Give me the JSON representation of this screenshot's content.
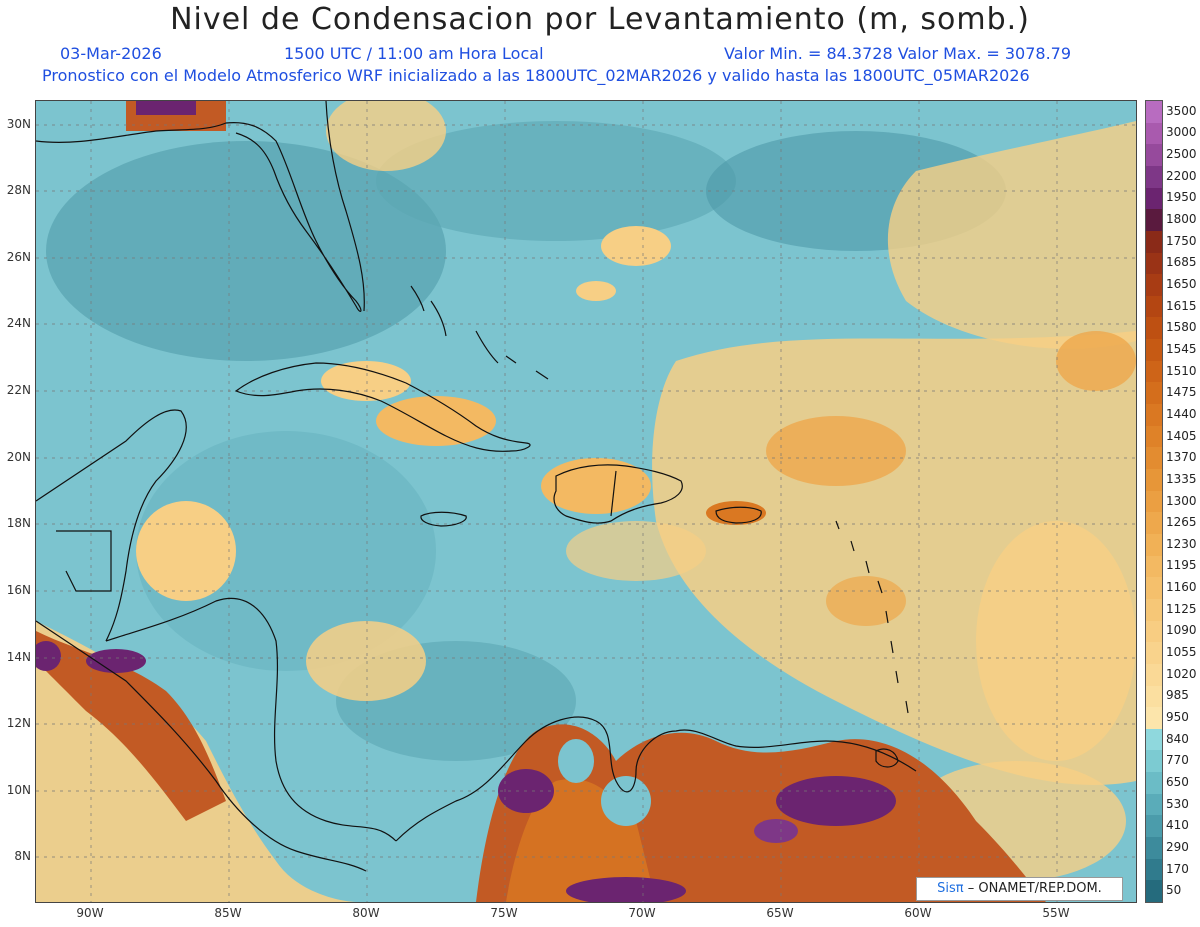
{
  "header": {
    "title": "Nivel de Condensacion por Levantamiento (m, somb.)",
    "date": "03-Mar-2026",
    "time": "1500 UTC / 11:00 am Hora Local",
    "minmax": "Valor Min. = 84.3728   Valor Max. = 3078.79",
    "model_info": "Pronostico con el Modelo Atmosferico WRF inicializado a las 1800UTC_02MAR2026 y valido hasta las  1800UTC_05MAR2026"
  },
  "axes": {
    "lat_labels": [
      "30N",
      "28N",
      "26N",
      "24N",
      "22N",
      "20N",
      "18N",
      "16N",
      "14N",
      "12N",
      "10N",
      "8N"
    ],
    "lon_labels": [
      "90W",
      "85W",
      "80W",
      "75W",
      "70W",
      "65W",
      "60W",
      "55W"
    ]
  },
  "colorbar": {
    "levels": [
      "3500",
      "3000",
      "2500",
      "2200",
      "1950",
      "1800",
      "1750",
      "1685",
      "1650",
      "1615",
      "1580",
      "1545",
      "1510",
      "1475",
      "1440",
      "1405",
      "1370",
      "1335",
      "1300",
      "1265",
      "1230",
      "1195",
      "1160",
      "1125",
      "1090",
      "1055",
      "1020",
      "985",
      "950",
      "840",
      "770",
      "650",
      "530",
      "410",
      "290",
      "170",
      "50"
    ],
    "colors": [
      "#b86cc0",
      "#a95aae",
      "#964a9c",
      "#7e3787",
      "#6b2470",
      "#5a1a3e",
      "#8a2a18",
      "#9a3316",
      "#a83c14",
      "#b44612",
      "#be5012",
      "#c65a14",
      "#ce6418",
      "#d46e1c",
      "#da7822",
      "#df8228",
      "#e38c30",
      "#e79638",
      "#eb9f42",
      "#eea84c",
      "#f1b156",
      "#f3b962",
      "#f5c06c",
      "#f6c777",
      "#f8cd82",
      "#f9d38c",
      "#fad996",
      "#fbdfa0",
      "#fce5ab",
      "#8fd8dd",
      "#7ccbd2",
      "#6bbcc6",
      "#5aacb9",
      "#4b9cab",
      "#3d8b9c",
      "#307b8d",
      "#256b7d"
    ]
  },
  "credit": {
    "brand": "Sisπ",
    "org": "– ONAMET/REP.DOM."
  },
  "map": {
    "background": "#7cc4cf",
    "warm_color": "#f7cf85",
    "hot_color": "#c25a24",
    "extreme_color": "#6b2470",
    "cool_color": "#4f9aa8",
    "coast_color": "#111111",
    "grid_color": "#777777"
  }
}
